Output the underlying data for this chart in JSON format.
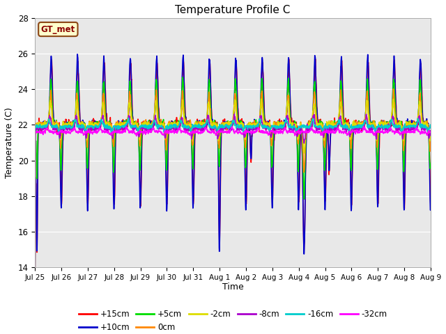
{
  "title": "Temperature Profile C",
  "xlabel": "Time",
  "ylabel": "Temperature (C)",
  "ylim": [
    14,
    28
  ],
  "yticks": [
    14,
    16,
    18,
    20,
    22,
    24,
    26,
    28
  ],
  "bg_color": "#dcdcdc",
  "plot_bg": "#e8e8e8",
  "annotation_text": "GT_met",
  "annotation_color": "#8B0000",
  "annotation_bg": "#ffffcc",
  "annotation_border": "#8B4513",
  "series_order": [
    "+15cm",
    "+10cm",
    "+5cm",
    "0cm",
    "-2cm",
    "-8cm",
    "-16cm",
    "-32cm"
  ],
  "series_colors": {
    "+15cm": "#ff0000",
    "+10cm": "#0000cc",
    "+5cm": "#00dd00",
    "0cm": "#ff8800",
    "-2cm": "#dddd00",
    "-8cm": "#aa00cc",
    "-16cm": "#00cccc",
    "-32cm": "#ff00ff"
  },
  "lw": 1.2,
  "n_days": 15,
  "pts_per_day": 144
}
